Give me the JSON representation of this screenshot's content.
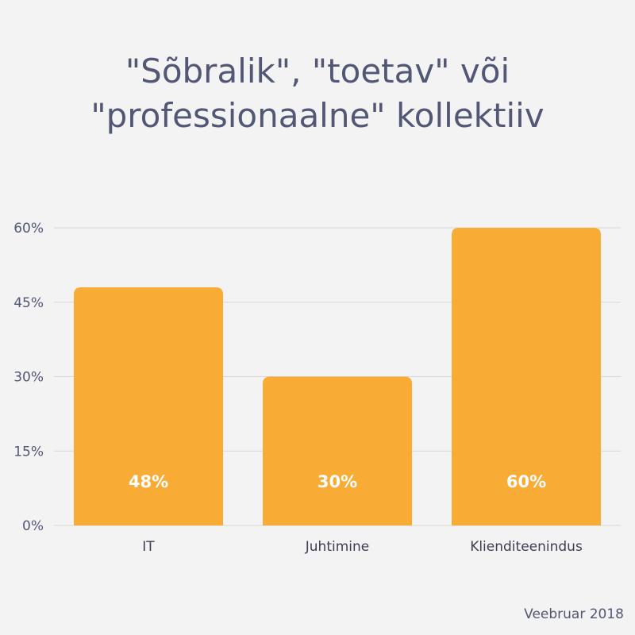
{
  "chart_data": {
    "type": "bar",
    "title_lines": [
      "\"Sõbralik\", \"toetav\" või",
      "\"professionaalne\" kollektiiv"
    ],
    "categories": [
      "IT",
      "Juhtimine",
      "Klienditeenindus"
    ],
    "values": [
      48,
      30,
      60
    ],
    "data_labels": [
      "48%",
      "30%",
      "60%"
    ],
    "y_ticks": [
      0,
      15,
      30,
      45,
      60
    ],
    "y_tick_labels": [
      "0%",
      "15%",
      "30%",
      "45%",
      "60%"
    ],
    "ylim": [
      0,
      60
    ],
    "grid": true,
    "legend": "none",
    "xlabel": "",
    "ylabel": ""
  },
  "colors": {
    "bar": "#f9ac35",
    "grid": "#d7d7d7",
    "text": "#525776",
    "background": "#f3f3f3"
  },
  "footer": {
    "note": "Veebruar 2018"
  }
}
